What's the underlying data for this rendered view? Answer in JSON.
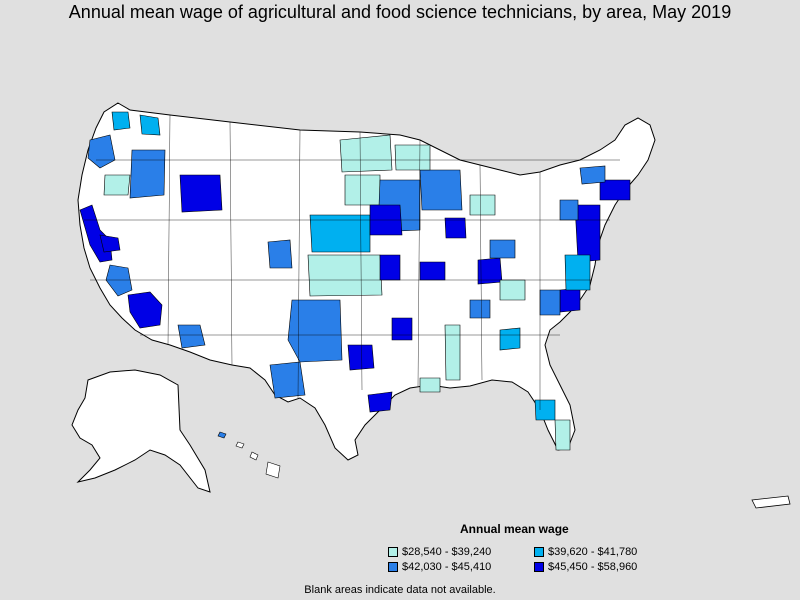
{
  "title": "Annual mean wage of agricultural and food science technicians, by area, May 2019",
  "legend": {
    "title": "Annual mean wage",
    "items": [
      {
        "label": "$28,540 - $39,240",
        "color": "#b2f0e8"
      },
      {
        "label": "$39,620 - $41,780",
        "color": "#00b0f0"
      },
      {
        "label": "$42,030 - $45,410",
        "color": "#2a7fe8"
      },
      {
        "label": "$45,450 - $58,960",
        "color": "#0000e6"
      }
    ]
  },
  "note": "Blank areas indicate data not available.",
  "colors": {
    "background": "#e0e0e0",
    "land": "#ffffff",
    "border": "#000000"
  }
}
